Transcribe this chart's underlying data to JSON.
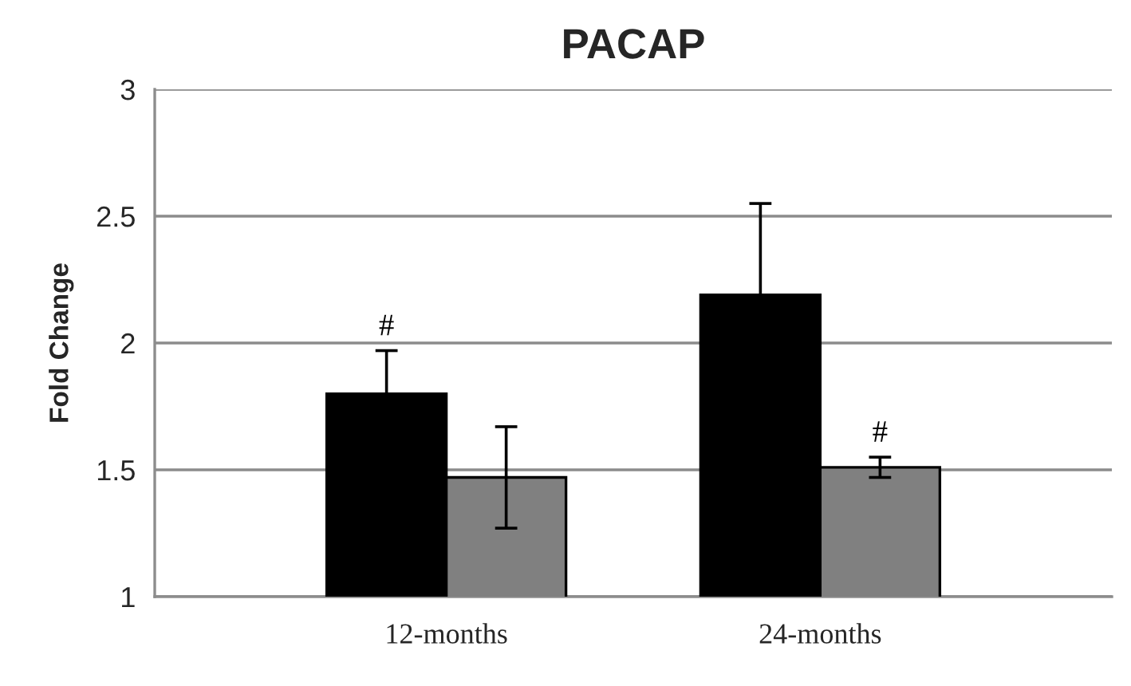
{
  "chart_data": {
    "type": "bar",
    "title": "PACAP",
    "ylabel": "Fold Change",
    "categories": [
      "12-months",
      "24-months"
    ],
    "series": [
      {
        "color": "#000000",
        "values": [
          1.8,
          2.19
        ],
        "errors": [
          0.17,
          0.36
        ],
        "value_labels": [
          "#",
          null
        ]
      },
      {
        "color": "#808080",
        "values": [
          1.47,
          1.51
        ],
        "errors": [
          0.2,
          0.04
        ],
        "value_labels": [
          null,
          "#"
        ]
      }
    ],
    "ylim": [
      1,
      3
    ],
    "yticks": [
      1,
      1.5,
      2,
      2.5,
      3
    ],
    "grid": "y"
  }
}
